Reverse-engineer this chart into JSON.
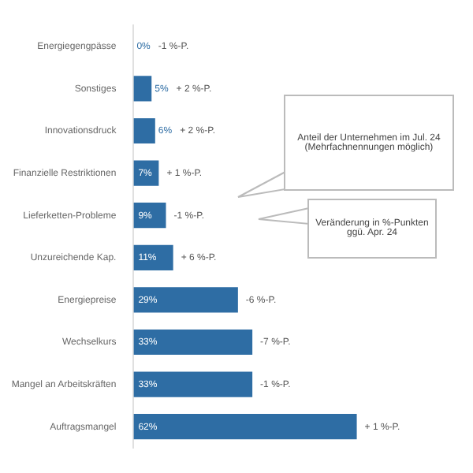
{
  "chart_data": {
    "type": "bar",
    "orientation": "horizontal",
    "categories": [
      "Energiegengpässe",
      "Sonstiges",
      "Innovationsdruck",
      "Finanzielle Restriktionen",
      "Lieferketten-Probleme",
      "Unzureichende Kap.",
      "Energiepreise",
      "Wechselkurs",
      "Mangel an Arbeitskräften",
      "Auftragsmangel"
    ],
    "values": [
      0,
      5,
      6,
      7,
      9,
      11,
      29,
      33,
      33,
      62
    ],
    "value_labels": [
      "0%",
      "5%",
      "6%",
      "7%",
      "9%",
      "11%",
      "29%",
      "33%",
      "33%",
      "62%"
    ],
    "color": "#2e6da4",
    "grid": false,
    "legend": false,
    "annotations": [
      {
        "text": "-1 %-P.",
        "x": 0,
        "y": "Energiegengpässe"
      },
      {
        "text": "+ 2 %-P.",
        "x": 5,
        "y": "Sonstiges"
      },
      {
        "text": "+ 2 %-P.",
        "x": 6,
        "y": "Innovationsdruck"
      },
      {
        "text": "+ 1 %-P.",
        "x": 7,
        "y": "Finanzielle Restriktionen"
      },
      {
        "text": "-1 %-P.",
        "x": 9,
        "y": "Lieferketten-Probleme"
      },
      {
        "text": "+ 6 %-P.",
        "x": 11,
        "y": "Unzureichende Kap."
      },
      {
        "text": "-6 %-P.",
        "x": 29,
        "y": "Energiepreise"
      },
      {
        "text": "-7 %-P.",
        "x": 33,
        "y": "Wechselkurs"
      },
      {
        "text": "-1 %-P.",
        "x": 33,
        "y": "Mangel an Arbeitskräften"
      },
      {
        "text": "+ 1 %-P.",
        "x": 62,
        "y": "Auftragsmangel"
      },
      "Anteil der Unternehmen im Jul. 24 (Mehrfachnennungen möglich)",
      "Veränderung in %-Punkten ggü. Apr. 24"
    ]
  }
}
